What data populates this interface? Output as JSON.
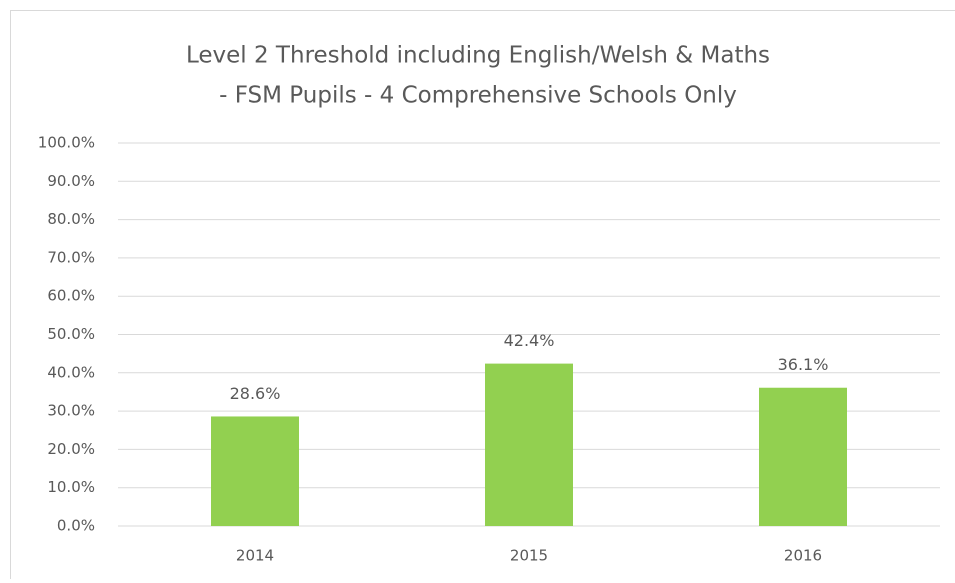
{
  "chart_data": {
    "type": "bar",
    "title": [
      "Level 2 Threshold including English/Welsh & Maths",
      "- FSM Pupils - 4 Comprehensive Schools Only"
    ],
    "categories": [
      "2014",
      "2015",
      "2016"
    ],
    "values": [
      28.6,
      42.4,
      36.1
    ],
    "value_labels": [
      "28.6%",
      "42.4%",
      "36.1%"
    ],
    "color": "#92d050",
    "ylim": [
      0,
      100
    ],
    "yticks": [
      {
        "value": 0,
        "label": "0.0%"
      },
      {
        "value": 10,
        "label": "10.0%"
      },
      {
        "value": 20,
        "label": "20.0%"
      },
      {
        "value": 30,
        "label": "30.0%"
      },
      {
        "value": 40,
        "label": "40.0%"
      },
      {
        "value": 50,
        "label": "50.0%"
      },
      {
        "value": 60,
        "label": "60.0%"
      },
      {
        "value": 70,
        "label": "70.0%"
      },
      {
        "value": 80,
        "label": "80.0%"
      },
      {
        "value": 90,
        "label": "90.0%"
      },
      {
        "value": 100,
        "label": "100.0%"
      }
    ],
    "grid": true
  }
}
